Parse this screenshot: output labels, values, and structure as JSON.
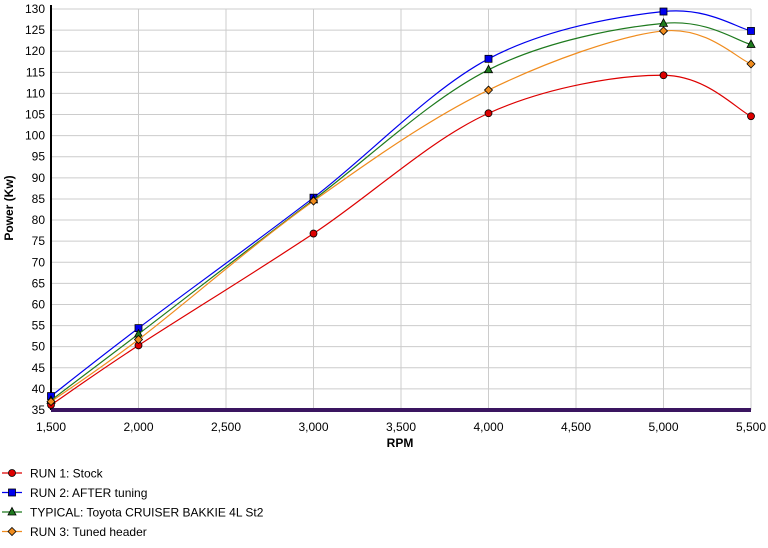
{
  "chart_data": {
    "type": "line",
    "title": "",
    "xlabel": "RPM",
    "ylabel": "Power (Kw)",
    "xlim": [
      1500,
      5500
    ],
    "ylim": [
      35,
      130
    ],
    "x_ticks": [
      1500,
      2000,
      2500,
      3000,
      3500,
      4000,
      4500,
      5000,
      5500
    ],
    "y_ticks": [
      35,
      40,
      45,
      50,
      55,
      60,
      65,
      70,
      75,
      80,
      85,
      90,
      95,
      100,
      105,
      110,
      115,
      120,
      125,
      130
    ],
    "grid": true,
    "legend_position": "bottom-left",
    "series": [
      {
        "name": "RUN 1: Stock",
        "color": "#dd0000",
        "marker": "circle",
        "x": [
          1500,
          2000,
          3000,
          4000,
          5000,
          5500
        ],
        "values": [
          36.2,
          50.3,
          76.8,
          105.3,
          114.3,
          104.6
        ]
      },
      {
        "name": "RUN 2: AFTER tuning",
        "color": "#0000ee",
        "marker": "square",
        "x": [
          1500,
          2000,
          3000,
          4000,
          5000,
          5500
        ],
        "values": [
          38.3,
          54.4,
          85.3,
          118.2,
          129.4,
          124.8
        ]
      },
      {
        "name": "TYPICAL: Toyota CRUISER BAKKIE 4L St2",
        "color": "#1e7a1e",
        "marker": "triangle",
        "x": [
          1500,
          2000,
          3000,
          4000,
          5000,
          5500
        ],
        "values": [
          37.3,
          53.0,
          84.8,
          115.6,
          126.6,
          121.6
        ]
      },
      {
        "name": "RUN 3: Tuned header",
        "color": "#f08c1e",
        "marker": "diamond",
        "x": [
          1500,
          2000,
          3000,
          4000,
          5000,
          5500
        ],
        "values": [
          37.0,
          51.7,
          84.5,
          110.8,
          124.8,
          117.0
        ]
      }
    ]
  }
}
